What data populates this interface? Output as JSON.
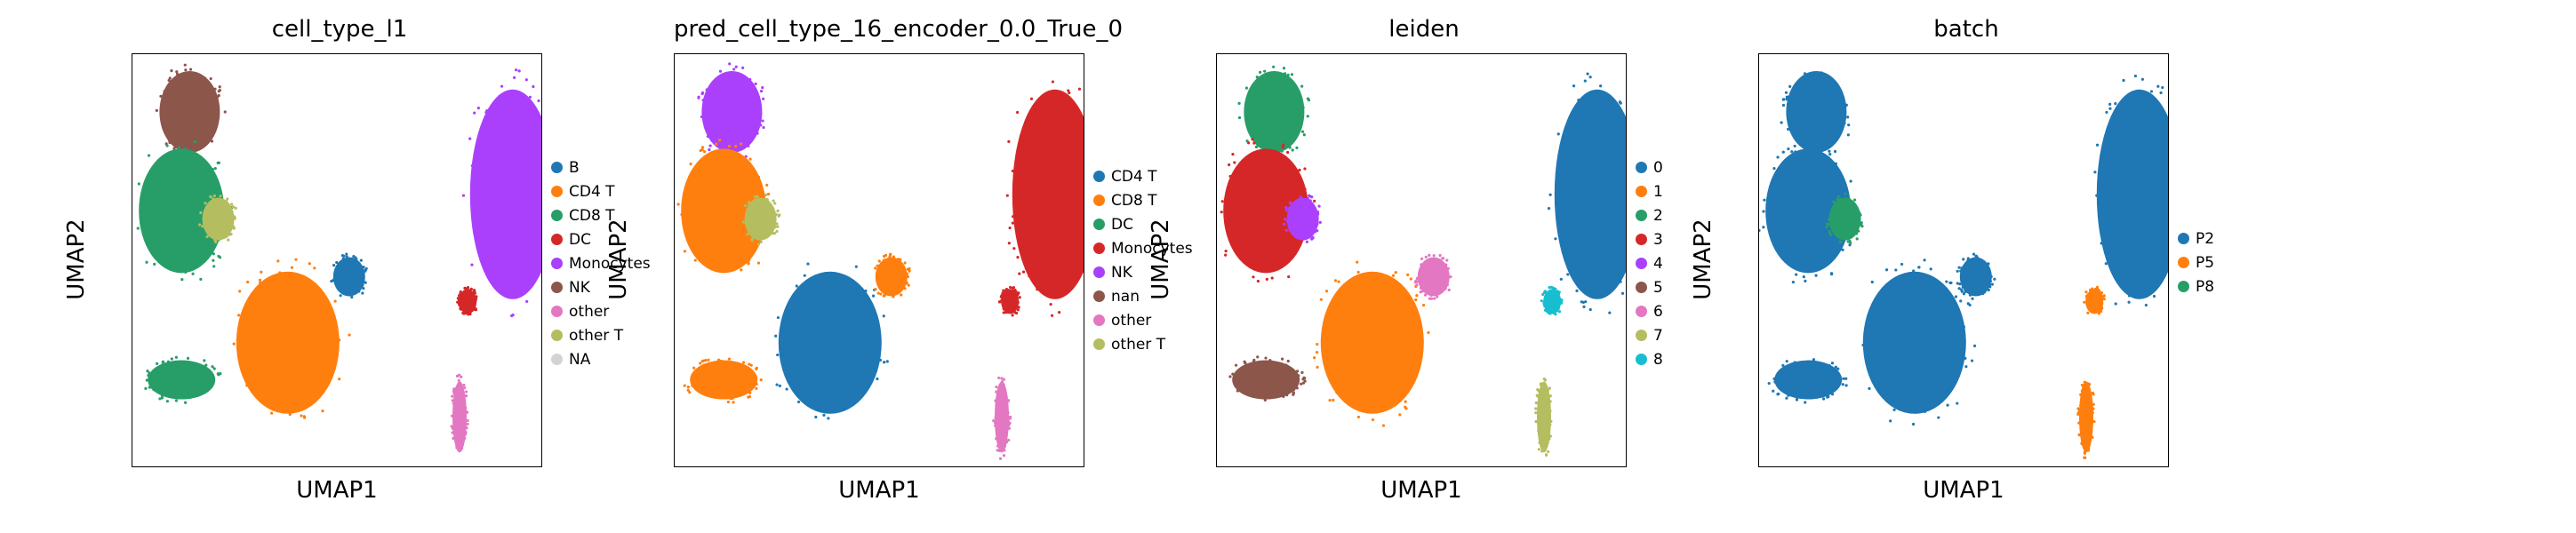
{
  "chart_data": [
    {
      "type": "scatter",
      "title": "cell_type_l1",
      "xlabel": "UMAP1",
      "ylabel": "UMAP2",
      "grid": false,
      "legend_placement": "right",
      "legend": [
        {
          "label": "B",
          "color": "#1f77b4"
        },
        {
          "label": "CD4 T",
          "color": "#ff7f0e"
        },
        {
          "label": "CD8 T",
          "color": "#279e68"
        },
        {
          "label": "DC",
          "color": "#d62728"
        },
        {
          "label": "Monocytes",
          "color": "#aa40fc"
        },
        {
          "label": "NK",
          "color": "#8c564b"
        },
        {
          "label": "other",
          "color": "#e377c2"
        },
        {
          "label": "other T",
          "color": "#b5bd61"
        },
        {
          "label": "NA",
          "color": "#d3d3d3"
        }
      ],
      "clusters": [
        {
          "label": "NK",
          "x": 0.14,
          "y": 0.86
        },
        {
          "label": "CD8 T",
          "x": 0.12,
          "y": 0.62
        },
        {
          "label": "CD4 T",
          "x": 0.38,
          "y": 0.3
        },
        {
          "label": "CD8 T",
          "x": 0.12,
          "y": 0.21
        },
        {
          "label": "B",
          "x": 0.53,
          "y": 0.46
        },
        {
          "label": "Monocytes",
          "x": 0.93,
          "y": 0.66
        },
        {
          "label": "DC",
          "x": 0.82,
          "y": 0.4
        },
        {
          "label": "other",
          "x": 0.8,
          "y": 0.12
        },
        {
          "label": "other T",
          "x": 0.21,
          "y": 0.6
        }
      ]
    },
    {
      "type": "scatter",
      "title": "pred_cell_type_16_encoder_0.0_True_0",
      "xlabel": "UMAP1",
      "ylabel": "UMAP2",
      "grid": false,
      "legend_placement": "right",
      "legend": [
        {
          "label": "CD4 T",
          "color": "#1f77b4"
        },
        {
          "label": "CD8 T",
          "color": "#ff7f0e"
        },
        {
          "label": "DC",
          "color": "#279e68"
        },
        {
          "label": "Monocytes",
          "color": "#d62728"
        },
        {
          "label": "NK",
          "color": "#aa40fc"
        },
        {
          "label": "nan",
          "color": "#8c564b"
        },
        {
          "label": "other",
          "color": "#e377c2"
        },
        {
          "label": "other T",
          "color": "#b5bd61"
        }
      ],
      "clusters": [
        {
          "label": "NK",
          "x": 0.14,
          "y": 0.86
        },
        {
          "label": "CD8 T",
          "x": 0.12,
          "y": 0.62
        },
        {
          "label": "CD4 T",
          "x": 0.38,
          "y": 0.3
        },
        {
          "label": "CD8 T",
          "x": 0.12,
          "y": 0.21
        },
        {
          "label": "CD8 T",
          "x": 0.53,
          "y": 0.46
        },
        {
          "label": "Monocytes",
          "x": 0.93,
          "y": 0.66
        },
        {
          "label": "Monocytes",
          "x": 0.82,
          "y": 0.4
        },
        {
          "label": "other",
          "x": 0.8,
          "y": 0.12
        },
        {
          "label": "other T",
          "x": 0.21,
          "y": 0.6
        }
      ]
    },
    {
      "type": "scatter",
      "title": "leiden",
      "xlabel": "UMAP1",
      "ylabel": "UMAP2",
      "grid": false,
      "legend_placement": "right",
      "legend": [
        {
          "label": "0",
          "color": "#1f77b4"
        },
        {
          "label": "1",
          "color": "#ff7f0e"
        },
        {
          "label": "2",
          "color": "#279e68"
        },
        {
          "label": "3",
          "color": "#d62728"
        },
        {
          "label": "4",
          "color": "#aa40fc"
        },
        {
          "label": "5",
          "color": "#8c564b"
        },
        {
          "label": "6",
          "color": "#e377c2"
        },
        {
          "label": "7",
          "color": "#b5bd61"
        },
        {
          "label": "8",
          "color": "#17becf"
        }
      ],
      "clusters": [
        {
          "label": "2",
          "x": 0.14,
          "y": 0.86
        },
        {
          "label": "3",
          "x": 0.12,
          "y": 0.62
        },
        {
          "label": "1",
          "x": 0.38,
          "y": 0.3
        },
        {
          "label": "5",
          "x": 0.12,
          "y": 0.21
        },
        {
          "label": "6",
          "x": 0.53,
          "y": 0.46
        },
        {
          "label": "0",
          "x": 0.93,
          "y": 0.66
        },
        {
          "label": "8",
          "x": 0.82,
          "y": 0.4
        },
        {
          "label": "7",
          "x": 0.8,
          "y": 0.12
        },
        {
          "label": "4",
          "x": 0.21,
          "y": 0.6
        }
      ]
    },
    {
      "type": "scatter",
      "title": "batch",
      "xlabel": "UMAP1",
      "ylabel": "UMAP2",
      "grid": false,
      "legend_placement": "right",
      "legend": [
        {
          "label": "P2",
          "color": "#1f77b4"
        },
        {
          "label": "P5",
          "color": "#ff7f0e"
        },
        {
          "label": "P8",
          "color": "#279e68"
        }
      ],
      "clusters": [
        {
          "label": "P2",
          "x": 0.14,
          "y": 0.86
        },
        {
          "label": "P2",
          "x": 0.12,
          "y": 0.62
        },
        {
          "label": "P2",
          "x": 0.38,
          "y": 0.3
        },
        {
          "label": "P2",
          "x": 0.12,
          "y": 0.21
        },
        {
          "label": "P2",
          "x": 0.53,
          "y": 0.46
        },
        {
          "label": "P2",
          "x": 0.93,
          "y": 0.66
        },
        {
          "label": "P5",
          "x": 0.82,
          "y": 0.4
        },
        {
          "label": "P5",
          "x": 0.8,
          "y": 0.12
        },
        {
          "label": "P8",
          "x": 0.21,
          "y": 0.6
        }
      ]
    }
  ]
}
